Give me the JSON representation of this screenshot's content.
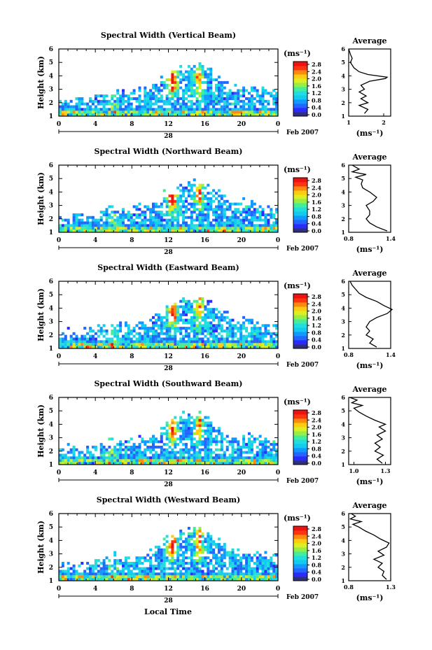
{
  "figure": {
    "xlabel": "Local Time",
    "date_label": "Feb 2007",
    "day_label": "28",
    "avg_title": "Average",
    "unit_label": "(ms⁻¹)",
    "colors": [
      "#30307a",
      "#2b2bff",
      "#2266ff",
      "#1199ff",
      "#11ccee",
      "#22dddd",
      "#44ee99",
      "#99ee44",
      "#ddee22",
      "#ffcc11",
      "#ff8811",
      "#ff3311",
      "#ee1111"
    ]
  },
  "chart_data": [
    {
      "type": "heatmap",
      "title": "Spectral Width (Vertical Beam)",
      "ylabel": "Height (km)",
      "x_ticks": [
        "0",
        "4",
        "8",
        "12",
        "16",
        "20",
        "0"
      ],
      "xlim": [
        0,
        24
      ],
      "y_ticks": [
        "1",
        "2",
        "3",
        "4",
        "5",
        "6"
      ],
      "ylim": [
        1,
        6
      ],
      "colorbar": {
        "ticks": [
          "2.8",
          "2.4",
          "2.0",
          "1.6",
          "1.2",
          "0.8",
          "0.4",
          "0.0"
        ],
        "range": [
          0.0,
          2.8
        ]
      },
      "average": {
        "x_ticks": [
          "1",
          "2"
        ],
        "xlim": [
          1,
          2.2
        ],
        "ylim": [
          1,
          6
        ],
        "height_km": [
          1.2,
          1.5,
          1.8,
          2.0,
          2.3,
          2.5,
          2.8,
          3.0,
          3.3,
          3.6,
          3.8,
          3.9,
          4.1,
          4.3,
          4.6,
          5.0,
          5.3,
          5.6,
          6.0
        ],
        "values": [
          1.45,
          1.55,
          1.3,
          1.55,
          1.35,
          1.5,
          1.3,
          1.45,
          1.35,
          1.6,
          2.05,
          2.1,
          1.55,
          1.3,
          1.15,
          1.05,
          1.1,
          1.05,
          1.0
        ]
      }
    },
    {
      "type": "heatmap",
      "title": "Spectral Width (Northward Beam)",
      "ylabel": "Height (km)",
      "x_ticks": [
        "0",
        "4",
        "8",
        "12",
        "16",
        "20",
        "0"
      ],
      "xlim": [
        0,
        24
      ],
      "y_ticks": [
        "1",
        "2",
        "3",
        "4",
        "5",
        "6"
      ],
      "ylim": [
        1,
        6
      ],
      "colorbar": {
        "ticks": [
          "2.8",
          "2.4",
          "2.0",
          "1.6",
          "1.2",
          "0.8",
          "0.4",
          "0.0"
        ],
        "range": [
          0.0,
          2.8
        ]
      },
      "average": {
        "x_ticks": [
          "0.8",
          "1.4"
        ],
        "xlim": [
          0.8,
          1.4
        ],
        "ylim": [
          1,
          6
        ],
        "height_km": [
          1.1,
          1.4,
          1.7,
          2.0,
          2.3,
          2.6,
          3.0,
          3.3,
          3.6,
          4.0,
          4.3,
          4.6,
          4.9,
          5.1,
          5.3,
          5.5,
          5.7,
          6.0
        ],
        "values": [
          1.35,
          1.2,
          1.1,
          1.05,
          1.1,
          1.1,
          1.05,
          1.15,
          1.2,
          1.1,
          1.0,
          0.98,
          1.0,
          0.9,
          1.05,
          0.85,
          0.95,
          0.85
        ]
      }
    },
    {
      "type": "heatmap",
      "title": "Spectral Width (Eastward Beam)",
      "ylabel": "Height (km)",
      "x_ticks": [
        "0",
        "4",
        "8",
        "12",
        "16",
        "20",
        "0"
      ],
      "xlim": [
        0,
        24
      ],
      "y_ticks": [
        "1",
        "2",
        "3",
        "4",
        "5",
        "6"
      ],
      "ylim": [
        1,
        6
      ],
      "colorbar": {
        "ticks": [
          "2.8",
          "2.4",
          "2.0",
          "1.6",
          "1.2",
          "0.8",
          "0.4",
          "0.0"
        ],
        "range": [
          0.0,
          2.8
        ]
      },
      "average": {
        "x_ticks": [
          "0.8",
          "1.4"
        ],
        "xlim": [
          0.8,
          1.4
        ],
        "ylim": [
          1,
          6
        ],
        "height_km": [
          1.1,
          1.4,
          1.7,
          2.0,
          2.3,
          2.6,
          3.0,
          3.3,
          3.6,
          3.9,
          4.2,
          4.5,
          4.8,
          5.1,
          5.4,
          5.7,
          6.0
        ],
        "values": [
          1.2,
          1.1,
          1.15,
          1.05,
          1.1,
          1.05,
          1.1,
          1.2,
          1.35,
          1.42,
          1.3,
          1.2,
          1.05,
          0.95,
          0.9,
          0.85,
          0.82
        ]
      }
    },
    {
      "type": "heatmap",
      "title": "Spectral Width (Southward Beam)",
      "ylabel": "Height (km)",
      "x_ticks": [
        "0",
        "4",
        "8",
        "12",
        "16",
        "20",
        "0"
      ],
      "xlim": [
        0,
        24
      ],
      "y_ticks": [
        "1",
        "2",
        "3",
        "4",
        "5",
        "6"
      ],
      "ylim": [
        1,
        6
      ],
      "colorbar": {
        "ticks": [
          "2.8",
          "2.4",
          "2.0",
          "1.6",
          "1.2",
          "0.8",
          "0.4",
          "0.0"
        ],
        "range": [
          0.0,
          2.8
        ]
      },
      "average": {
        "x_ticks": [
          "1.0",
          "1.3"
        ],
        "xlim": [
          0.95,
          1.35
        ],
        "ylim": [
          1,
          6
        ],
        "height_km": [
          1.1,
          1.4,
          1.7,
          2.0,
          2.3,
          2.6,
          2.9,
          3.2,
          3.5,
          3.8,
          4.0,
          4.3,
          4.6,
          4.9,
          5.2,
          5.4,
          5.6,
          5.8,
          6.0
        ],
        "values": [
          1.27,
          1.22,
          1.28,
          1.2,
          1.25,
          1.2,
          1.27,
          1.22,
          1.3,
          1.24,
          1.3,
          1.2,
          1.12,
          1.05,
          1.0,
          1.08,
          0.98,
          1.03,
          0.96
        ]
      }
    },
    {
      "type": "heatmap",
      "title": "Spectral Width (Westward Beam)",
      "ylabel": "Height (km)",
      "x_ticks": [
        "0",
        "4",
        "8",
        "12",
        "16",
        "20",
        "0"
      ],
      "xlim": [
        0,
        24
      ],
      "y_ticks": [
        "1",
        "2",
        "3",
        "4",
        "5",
        "6"
      ],
      "ylim": [
        1,
        6
      ],
      "colorbar": {
        "ticks": [
          "2.8",
          "2.4",
          "2.0",
          "1.6",
          "1.2",
          "0.8",
          "0.4",
          "0.0"
        ],
        "range": [
          0.0,
          2.8
        ]
      },
      "average": {
        "x_ticks": [
          "0.8",
          "1.3"
        ],
        "xlim": [
          0.8,
          1.3
        ],
        "ylim": [
          1,
          6
        ],
        "height_km": [
          1.1,
          1.4,
          1.7,
          2.0,
          2.3,
          2.6,
          2.9,
          3.2,
          3.5,
          3.8,
          4.1,
          4.4,
          4.7,
          5.0,
          5.2,
          5.4,
          5.6,
          5.8,
          6.0
        ],
        "values": [
          1.25,
          1.2,
          1.22,
          1.15,
          1.2,
          1.1,
          1.22,
          1.15,
          1.25,
          1.28,
          1.18,
          1.1,
          1.0,
          0.92,
          0.85,
          0.95,
          0.82,
          0.88,
          0.83
        ]
      }
    }
  ]
}
